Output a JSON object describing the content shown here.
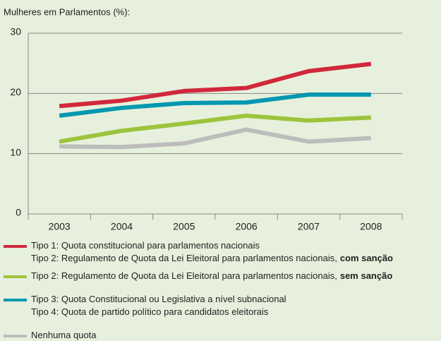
{
  "chart_data": {
    "type": "line",
    "title": "Mulheres em Parlamentos (%):",
    "categories": [
      "2003",
      "2004",
      "2005",
      "2006",
      "2007",
      "2008"
    ],
    "ylim": [
      0,
      30
    ],
    "yticks": [
      0,
      10,
      20,
      30
    ],
    "grid": true,
    "series": [
      {
        "name": [
          {
            "text": "Tipo 1: Quota constitucional para parlamentos nacionais"
          },
          {
            "text": "Tipo 2: Regulamento de Quota da Lei Eleitoral para parlamentos nacionais,",
            "bold": "com sanção"
          }
        ],
        "color": "#d2283c",
        "values": [
          17.9,
          18.8,
          20.4,
          20.9,
          23.7,
          24.9
        ]
      },
      {
        "name": [
          {
            "text": "Tipo 2: Regulamento de Quota da Lei Eleitoral para parlamentos nacionais,",
            "bold": "sem sanção"
          }
        ],
        "color": "#9cc43c",
        "values": [
          12.0,
          13.8,
          15.0,
          16.3,
          15.5,
          16.0
        ]
      },
      {
        "name": [
          {
            "text": "Tipo 3: Quota Constitucional ou Legislativa a nível subnacional"
          },
          {
            "text": "Tipo 4: Quota de partido político para candidatos eleitorais"
          }
        ],
        "color": "#0098b0",
        "values": [
          16.3,
          17.6,
          18.4,
          18.5,
          19.8,
          19.8
        ]
      },
      {
        "name": [
          {
            "text": "Nenhuma quota"
          }
        ],
        "color": "#bdbdbd",
        "values": [
          11.2,
          11.1,
          11.7,
          14.0,
          12.0,
          12.6
        ]
      }
    ]
  }
}
